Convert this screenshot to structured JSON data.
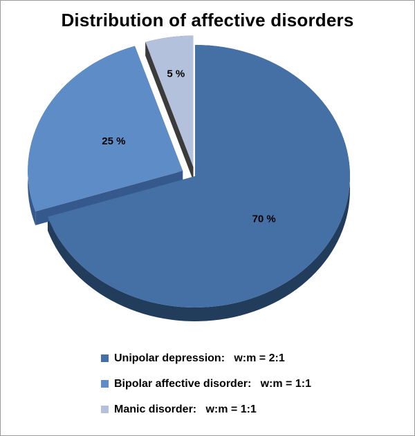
{
  "chart_data": {
    "type": "pie",
    "title": "Distribution of affective disorders",
    "slices": [
      {
        "label": "Unipolar depression:   w:m = 2:1",
        "value": 70,
        "value_label": "70 %",
        "color": "#4470a6",
        "side_color": "#223c5c",
        "exploded": false
      },
      {
        "label": "Bipolar affective disorder:   w:m = 1:1",
        "value": 25,
        "value_label": "25 %",
        "color": "#5d8cc6",
        "side_color": "#35598c",
        "exploded": true
      },
      {
        "label": "Manic disorder:   w:m = 1:1",
        "value": 5,
        "value_label": "5 %",
        "color": "#b3c1dd",
        "side_color": "#3b3b3b",
        "exploded": true
      }
    ],
    "legend_position": "bottom",
    "style": "3d-exploded"
  }
}
